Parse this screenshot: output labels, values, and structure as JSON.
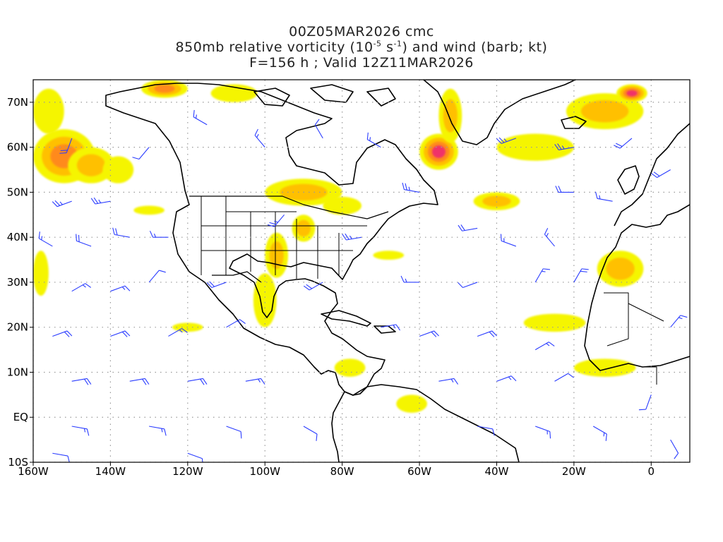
{
  "title": {
    "line1": "00Z05MAR2026 cmc",
    "line2_a": "850mb relative vorticity (10",
    "line2_exp1": "-5",
    "line2_b": " s",
    "line2_exp2": "-1",
    "line2_c": ") and wind (barb; kt)",
    "line3": "F=156 h ; Valid 12Z11MAR2026"
  },
  "map": {
    "lon_range": [
      -160,
      10
    ],
    "lat_range": [
      -10,
      75
    ],
    "lon_ticks": [
      {
        "value": -160,
        "label": "160W"
      },
      {
        "value": -140,
        "label": "140W"
      },
      {
        "value": -120,
        "label": "120W"
      },
      {
        "value": -100,
        "label": "100W"
      },
      {
        "value": -80,
        "label": "80W"
      },
      {
        "value": -60,
        "label": "60W"
      },
      {
        "value": -40,
        "label": "40W"
      },
      {
        "value": -20,
        "label": "20W"
      },
      {
        "value": 0,
        "label": "0"
      }
    ],
    "lat_ticks": [
      {
        "value": -10,
        "label": "10S"
      },
      {
        "value": 0,
        "label": "EQ"
      },
      {
        "value": 10,
        "label": "10N"
      },
      {
        "value": 20,
        "label": "20N"
      },
      {
        "value": 30,
        "label": "30N"
      },
      {
        "value": 40,
        "label": "40N"
      },
      {
        "value": 50,
        "label": "50N"
      },
      {
        "value": 60,
        "label": "60N"
      },
      {
        "value": 70,
        "label": "70N"
      }
    ],
    "colors": {
      "vort_low": "#f5f500",
      "vort_mid": "#ffc000",
      "vort_high": "#ff8a1a",
      "vort_max": "#f0306a",
      "barb": "#2a3cff",
      "coast": "#000000",
      "grid": "#888888"
    },
    "vorticity_blobs": [
      {
        "lon": -152,
        "lat": 58,
        "rlon": 8,
        "rlat": 6,
        "level": 3
      },
      {
        "lon": -145,
        "lat": 56,
        "rlon": 6,
        "rlat": 4,
        "level": 2
      },
      {
        "lon": -138,
        "lat": 55,
        "rlon": 4,
        "rlat": 3,
        "level": 1
      },
      {
        "lon": -126,
        "lat": 73,
        "rlon": 6,
        "rlat": 2,
        "level": 3
      },
      {
        "lon": -108,
        "lat": 72,
        "rlon": 6,
        "rlat": 2,
        "level": 1
      },
      {
        "lon": -156,
        "lat": 68,
        "rlon": 4,
        "rlat": 5,
        "level": 1
      },
      {
        "lon": -90,
        "lat": 50,
        "rlon": 10,
        "rlat": 3,
        "level": 2
      },
      {
        "lon": -80,
        "lat": 47,
        "rlon": 5,
        "rlat": 2,
        "level": 1
      },
      {
        "lon": -97,
        "lat": 36,
        "rlon": 3,
        "rlat": 5,
        "level": 2
      },
      {
        "lon": -90,
        "lat": 42,
        "rlon": 3,
        "rlat": 3,
        "level": 2
      },
      {
        "lon": -100,
        "lat": 26,
        "rlon": 3,
        "rlat": 6,
        "level": 1
      },
      {
        "lon": -55,
        "lat": 59,
        "rlon": 5,
        "rlat": 4,
        "level": 4
      },
      {
        "lon": -52,
        "lat": 67,
        "rlon": 3,
        "rlat": 6,
        "level": 2
      },
      {
        "lon": -40,
        "lat": 48,
        "rlon": 6,
        "rlat": 2,
        "level": 2
      },
      {
        "lon": -30,
        "lat": 60,
        "rlon": 10,
        "rlat": 3,
        "level": 1
      },
      {
        "lon": -12,
        "lat": 68,
        "rlon": 10,
        "rlat": 4,
        "level": 2
      },
      {
        "lon": -5,
        "lat": 72,
        "rlon": 4,
        "rlat": 2,
        "level": 4
      },
      {
        "lon": -8,
        "lat": 33,
        "rlon": 6,
        "rlat": 4,
        "level": 2
      },
      {
        "lon": -25,
        "lat": 21,
        "rlon": 8,
        "rlat": 2,
        "level": 1
      },
      {
        "lon": -12,
        "lat": 11,
        "rlon": 8,
        "rlat": 2,
        "level": 1
      },
      {
        "lon": -158,
        "lat": 32,
        "rlon": 2,
        "rlat": 5,
        "level": 1
      },
      {
        "lon": -78,
        "lat": 11,
        "rlon": 4,
        "rlat": 2,
        "level": 1
      },
      {
        "lon": -62,
        "lat": 3,
        "rlon": 4,
        "rlat": 2,
        "level": 1
      },
      {
        "lon": -68,
        "lat": 36,
        "rlon": 4,
        "rlat": 1,
        "level": 1
      },
      {
        "lon": -130,
        "lat": 46,
        "rlon": 4,
        "rlat": 1,
        "level": 1
      },
      {
        "lon": -120,
        "lat": 20,
        "rlon": 4,
        "rlat": 1,
        "level": 1
      }
    ],
    "wind_barbs": [
      {
        "lon": -155,
        "lat": 38,
        "dir": 300,
        "spd": 15
      },
      {
        "lon": -145,
        "lat": 38,
        "dir": 290,
        "spd": 20
      },
      {
        "lon": -135,
        "lat": 40,
        "dir": 280,
        "spd": 20
      },
      {
        "lon": -125,
        "lat": 40,
        "dir": 270,
        "spd": 15
      },
      {
        "lon": -150,
        "lat": 28,
        "dir": 60,
        "spd": 15
      },
      {
        "lon": -140,
        "lat": 28,
        "dir": 70,
        "spd": 15
      },
      {
        "lon": -130,
        "lat": 30,
        "dir": 40,
        "spd": 10
      },
      {
        "lon": -155,
        "lat": 18,
        "dir": 70,
        "spd": 20
      },
      {
        "lon": -140,
        "lat": 18,
        "dir": 70,
        "spd": 20
      },
      {
        "lon": -125,
        "lat": 18,
        "dir": 60,
        "spd": 15
      },
      {
        "lon": -110,
        "lat": 20,
        "dir": 60,
        "spd": 15
      },
      {
        "lon": -150,
        "lat": 8,
        "dir": 80,
        "spd": 20
      },
      {
        "lon": -135,
        "lat": 8,
        "dir": 80,
        "spd": 20
      },
      {
        "lon": -120,
        "lat": 8,
        "dir": 80,
        "spd": 20
      },
      {
        "lon": -105,
        "lat": 8,
        "dir": 80,
        "spd": 15
      },
      {
        "lon": -150,
        "lat": -2,
        "dir": 100,
        "spd": 15
      },
      {
        "lon": -130,
        "lat": -2,
        "dir": 100,
        "spd": 15
      },
      {
        "lon": -110,
        "lat": -2,
        "dir": 110,
        "spd": 10
      },
      {
        "lon": -90,
        "lat": -2,
        "dir": 120,
        "spd": 10
      },
      {
        "lon": -150,
        "lat": 48,
        "dir": 250,
        "spd": 25
      },
      {
        "lon": -140,
        "lat": 48,
        "dir": 260,
        "spd": 25
      },
      {
        "lon": -150,
        "lat": 62,
        "dir": 200,
        "spd": 20
      },
      {
        "lon": -130,
        "lat": 60,
        "dir": 220,
        "spd": 10
      },
      {
        "lon": -115,
        "lat": 65,
        "dir": 300,
        "spd": 15
      },
      {
        "lon": -100,
        "lat": 60,
        "dir": 320,
        "spd": 15
      },
      {
        "lon": -85,
        "lat": 62,
        "dir": 330,
        "spd": 10
      },
      {
        "lon": -70,
        "lat": 60,
        "dir": 300,
        "spd": 15
      },
      {
        "lon": -60,
        "lat": 50,
        "dir": 280,
        "spd": 25
      },
      {
        "lon": -45,
        "lat": 42,
        "dir": 260,
        "spd": 20
      },
      {
        "lon": -35,
        "lat": 38,
        "dir": 290,
        "spd": 15
      },
      {
        "lon": -25,
        "lat": 38,
        "dir": 320,
        "spd": 15
      },
      {
        "lon": -60,
        "lat": 30,
        "dir": 270,
        "spd": 15
      },
      {
        "lon": -45,
        "lat": 30,
        "dir": 250,
        "spd": 10
      },
      {
        "lon": -30,
        "lat": 30,
        "dir": 30,
        "spd": 15
      },
      {
        "lon": -20,
        "lat": 30,
        "dir": 30,
        "spd": 20
      },
      {
        "lon": -60,
        "lat": 18,
        "dir": 70,
        "spd": 20
      },
      {
        "lon": -45,
        "lat": 18,
        "dir": 70,
        "spd": 20
      },
      {
        "lon": -30,
        "lat": 15,
        "dir": 60,
        "spd": 15
      },
      {
        "lon": -55,
        "lat": 8,
        "dir": 80,
        "spd": 15
      },
      {
        "lon": -40,
        "lat": 8,
        "dir": 70,
        "spd": 15
      },
      {
        "lon": -25,
        "lat": 8,
        "dir": 60,
        "spd": 10
      },
      {
        "lon": -45,
        "lat": -2,
        "dir": 100,
        "spd": 10
      },
      {
        "lon": -30,
        "lat": -2,
        "dir": 110,
        "spd": 15
      },
      {
        "lon": -15,
        "lat": -2,
        "dir": 120,
        "spd": 15
      },
      {
        "lon": -35,
        "lat": 62,
        "dir": 250,
        "spd": 25
      },
      {
        "lon": -20,
        "lat": 60,
        "dir": 260,
        "spd": 25
      },
      {
        "lon": -5,
        "lat": 62,
        "dir": 230,
        "spd": 20
      },
      {
        "lon": 5,
        "lat": 55,
        "dir": 240,
        "spd": 20
      },
      {
        "lon": -20,
        "lat": 50,
        "dir": 270,
        "spd": 20
      },
      {
        "lon": -10,
        "lat": 48,
        "dir": 280,
        "spd": 15
      },
      {
        "lon": -110,
        "lat": 30,
        "dir": 250,
        "spd": 20
      },
      {
        "lon": -95,
        "lat": 45,
        "dir": 220,
        "spd": 25
      },
      {
        "lon": -85,
        "lat": 30,
        "dir": 240,
        "spd": 20
      },
      {
        "lon": -75,
        "lat": 40,
        "dir": 260,
        "spd": 25
      },
      {
        "lon": -70,
        "lat": 20,
        "dir": 80,
        "spd": 15
      },
      {
        "lon": 5,
        "lat": 20,
        "dir": 40,
        "spd": 15
      },
      {
        "lon": 0,
        "lat": 5,
        "dir": 200,
        "spd": 10
      },
      {
        "lon": 5,
        "lat": -5,
        "dir": 150,
        "spd": 10
      },
      {
        "lon": -155,
        "lat": -8,
        "dir": 100,
        "spd": 10
      },
      {
        "lon": -120,
        "lat": -8,
        "dir": 110,
        "spd": 10
      }
    ]
  }
}
